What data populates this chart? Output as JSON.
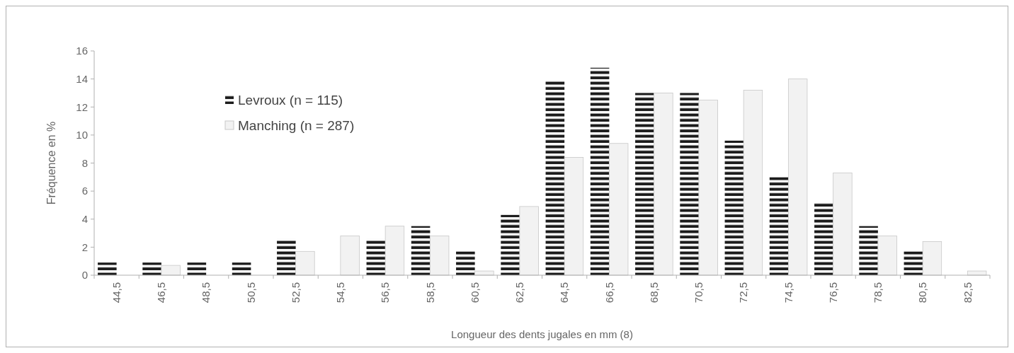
{
  "chart_data": {
    "type": "bar",
    "xlabel": "Longueur des dents jugales en mm (8)",
    "ylabel": "Fréquence en %",
    "categories": [
      "44,5",
      "46,5",
      "48,5",
      "50,5",
      "52,5",
      "54,5",
      "56,5",
      "58,5",
      "60,5",
      "62,5",
      "64,5",
      "66,5",
      "68,5",
      "70,5",
      "72,5",
      "74,5",
      "76,5",
      "78,5",
      "80,5",
      "82,5"
    ],
    "series": [
      {
        "name": "Levroux (n = 115)",
        "color": "#1a1a1a",
        "values": [
          0.9,
          0.9,
          0.9,
          0.9,
          2.6,
          0,
          2.6,
          3.5,
          1.7,
          4.3,
          13.9,
          14.8,
          13.0,
          13.0,
          9.6,
          7.0,
          5.2,
          3.5,
          1.7,
          0
        ]
      },
      {
        "name": "Manching (n = 287)",
        "color": "#f2f2f2",
        "values": [
          0,
          0.7,
          0,
          0,
          1.7,
          2.8,
          3.5,
          2.8,
          0.3,
          4.9,
          8.4,
          9.4,
          13.0,
          12.5,
          13.2,
          14.0,
          7.3,
          2.8,
          2.4,
          0.3
        ]
      }
    ],
    "ylim": [
      0,
      16
    ],
    "yticks": [
      0,
      2,
      4,
      6,
      8,
      10,
      12,
      14,
      16
    ],
    "grid": false,
    "legend": "top left"
  }
}
